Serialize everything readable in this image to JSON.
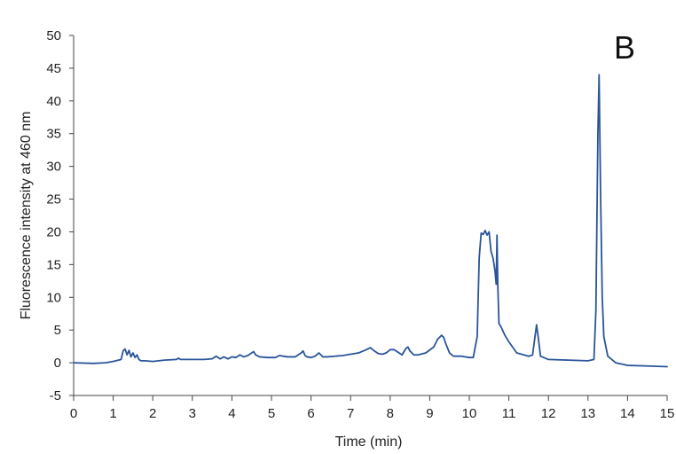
{
  "chart_data": {
    "type": "line",
    "panel_label": "B",
    "title": "",
    "xlabel": "Time (min)",
    "ylabel": "Fluorescence intensity at 460 nm",
    "xlim": [
      0,
      15
    ],
    "ylim": [
      -5,
      50
    ],
    "x_ticks": [
      0,
      1,
      2,
      3,
      4,
      5,
      6,
      7,
      8,
      9,
      10,
      11,
      12,
      13,
      14,
      15
    ],
    "y_ticks": [
      -5,
      0,
      5,
      10,
      15,
      20,
      25,
      30,
      35,
      40,
      45,
      50
    ],
    "x_tick_labels": [
      "0",
      "1",
      "2",
      "3",
      "4",
      "5",
      "6",
      "7",
      "8",
      "9",
      "10",
      "11",
      "12",
      "13",
      "14",
      "15"
    ],
    "y_tick_labels": [
      "-5",
      "0",
      "5",
      "10",
      "15",
      "20",
      "25",
      "30",
      "35",
      "40",
      "45",
      "50"
    ],
    "grid": false,
    "series_color": "#2a5599",
    "series": [
      {
        "x": [
          0,
          0.5,
          0.8,
          1.0,
          1.2,
          1.25,
          1.3,
          1.35,
          1.4,
          1.45,
          1.5,
          1.55,
          1.6,
          1.65,
          1.7,
          1.8,
          2.0,
          2.3,
          2.6,
          2.65,
          2.7,
          3.0,
          3.3,
          3.5,
          3.6,
          3.7,
          3.8,
          3.9,
          4.0,
          4.1,
          4.2,
          4.3,
          4.4,
          4.5,
          4.55,
          4.6,
          4.7,
          4.9,
          5.1,
          5.2,
          5.4,
          5.6,
          5.75,
          5.8,
          5.85,
          5.9,
          6.0,
          6.1,
          6.2,
          6.25,
          6.3,
          6.4,
          6.6,
          6.8,
          7.0,
          7.2,
          7.4,
          7.5,
          7.6,
          7.7,
          7.8,
          7.9,
          8.0,
          8.1,
          8.2,
          8.3,
          8.4,
          8.45,
          8.5,
          8.6,
          8.7,
          8.9,
          9.1,
          9.2,
          9.3,
          9.35,
          9.4,
          9.5,
          9.6,
          9.8,
          10.0,
          10.1,
          10.2,
          10.25,
          10.3,
          10.35,
          10.4,
          10.45,
          10.5,
          10.55,
          10.6,
          10.65,
          10.68,
          10.7,
          10.72,
          10.75,
          10.8,
          10.9,
          11.0,
          11.2,
          11.5,
          11.6,
          11.65,
          11.7,
          11.75,
          11.8,
          12.0,
          12.5,
          13.0,
          13.15,
          13.2,
          13.25,
          13.28,
          13.32,
          13.36,
          13.4,
          13.5,
          13.7,
          14.0,
          14.5,
          15.0
        ],
        "y": [
          0.0,
          -0.1,
          0.0,
          0.2,
          0.5,
          1.8,
          2.1,
          1.2,
          1.9,
          0.9,
          1.5,
          0.8,
          1.2,
          0.5,
          0.3,
          0.3,
          0.2,
          0.4,
          0.5,
          0.7,
          0.5,
          0.5,
          0.5,
          0.6,
          1.0,
          0.6,
          0.9,
          0.6,
          0.9,
          0.8,
          1.2,
          0.9,
          1.1,
          1.5,
          1.7,
          1.2,
          0.9,
          0.8,
          0.8,
          1.1,
          0.9,
          0.9,
          1.5,
          1.8,
          1.1,
          0.9,
          0.8,
          1.0,
          1.5,
          1.2,
          0.9,
          0.9,
          1.0,
          1.1,
          1.3,
          1.5,
          2.0,
          2.3,
          1.8,
          1.4,
          1.3,
          1.5,
          2.0,
          2.0,
          1.6,
          1.2,
          2.2,
          2.4,
          1.8,
          1.2,
          1.2,
          1.5,
          2.4,
          3.6,
          4.2,
          3.9,
          3.0,
          1.5,
          1.0,
          1.0,
          0.8,
          0.8,
          4.0,
          16.0,
          19.8,
          19.6,
          20.2,
          19.5,
          20.0,
          17.0,
          16.0,
          14.0,
          12.0,
          19.5,
          12.0,
          6.0,
          5.5,
          4.2,
          3.2,
          1.5,
          1.0,
          1.2,
          3.5,
          5.8,
          3.5,
          1.0,
          0.5,
          0.4,
          0.3,
          0.5,
          8.0,
          35.0,
          44.0,
          25.0,
          10.0,
          4.0,
          1.0,
          0.0,
          -0.4,
          -0.5,
          -0.6
        ]
      }
    ]
  }
}
